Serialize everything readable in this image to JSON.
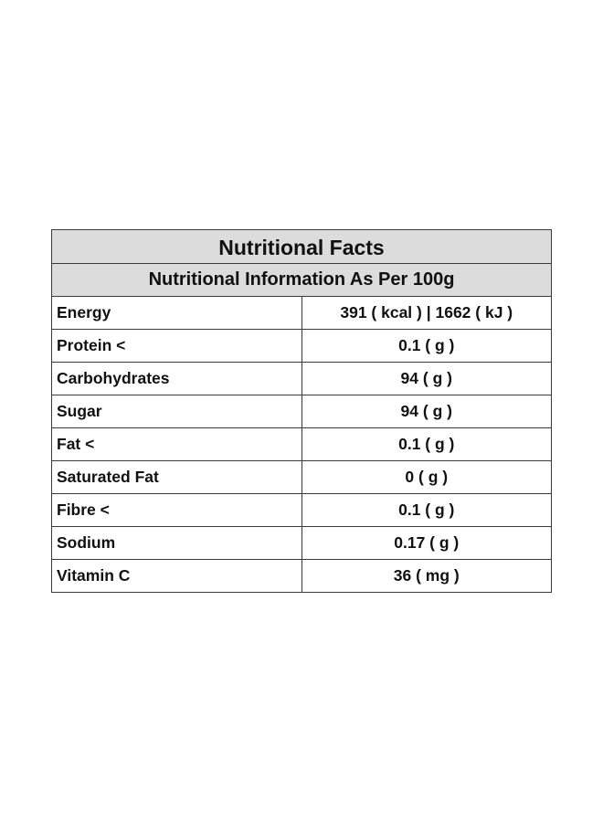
{
  "table": {
    "title": "Nutritional Facts",
    "subtitle": "Nutritional Information As Per 100g",
    "rows": [
      {
        "name": "Energy",
        "value": "391 ( kcal ) | 1662 ( kJ )"
      },
      {
        "name": "Protein <",
        "value": "0.1 ( g )"
      },
      {
        "name": "Carbohydrates",
        "value": "94 ( g )"
      },
      {
        "name": "Sugar",
        "value": "94 ( g )"
      },
      {
        "name": "Fat <",
        "value": "0.1 ( g )"
      },
      {
        "name": "Saturated Fat",
        "value": "0 ( g )"
      },
      {
        "name": "Fibre <",
        "value": "0.1 ( g )"
      },
      {
        "name": "Sodium",
        "value": "0.17 ( g )"
      },
      {
        "name": "Vitamin C",
        "value": "36 ( mg )"
      }
    ]
  }
}
